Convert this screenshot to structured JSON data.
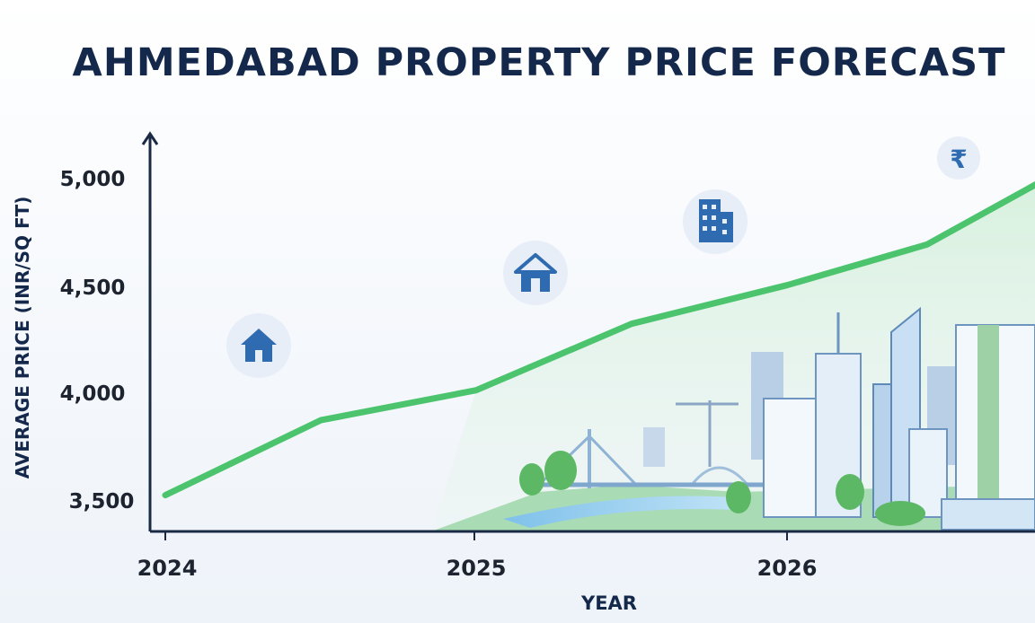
{
  "chart_data": {
    "type": "line",
    "title": "AHMEDABAD PROPERTY PRICE FORECAST",
    "xlabel": "YEAR",
    "ylabel": "AVERAGE PRICE (INR/SQ FT)",
    "x_ticks": [
      "2024",
      "2025",
      "2026"
    ],
    "y_ticks": [
      3500,
      4000,
      4500,
      5000
    ],
    "y_tick_labels": [
      "3,500",
      "4,000",
      "4,500",
      "5,000"
    ],
    "xlim": [
      2024,
      2026.8
    ],
    "ylim": [
      3370,
      5220
    ],
    "grid": false,
    "series": [
      {
        "color": "#4cc46e",
        "x": [
          2024.0,
          2024.5,
          2025.0,
          2025.5,
          2026.0,
          2026.45,
          2026.8
        ],
        "y": [
          3510,
          3860,
          4000,
          4310,
          4490,
          4680,
          4960
        ]
      }
    ]
  },
  "icons": [
    "house-icon",
    "house-icon",
    "building-icon",
    "rupee-icon"
  ],
  "rupee_symbol": "₹",
  "colors": {
    "line": "#4cc46e",
    "axis": "#1b2a44",
    "title": "#14284b",
    "icon": "#2f6bb0"
  }
}
